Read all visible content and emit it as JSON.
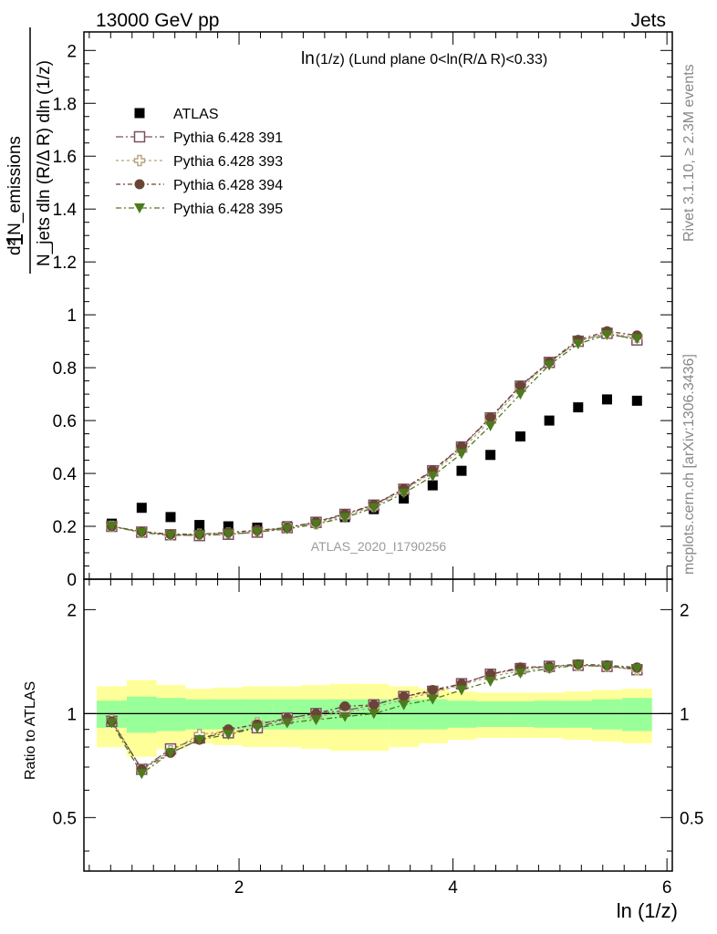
{
  "header": {
    "left": "13000 GeV pp",
    "right": "Jets",
    "side_rivet": "Rivet 3.1.10, ≥ 2.3M events",
    "side_mcplots": "mcplots.cern.ch [arXiv:1306.3436]",
    "analysis_id": "ATLAS_2020_I1790256"
  },
  "chart_data": [
    {
      "type": "scatter",
      "title": "ln(1/z) (Lund plane 0<ln(R/Δ R)<0.33)",
      "title_main": "ln",
      "title_sub": "(1/z) (Lund plane 0<ln(R/Δ R)<0.33)",
      "ylabel_top": "d² N_emissions",
      "ylabel_bottom": "N_jets dln (R/Δ R) dln (1/z)",
      "ylabel_one": "1",
      "ylim": [
        0,
        2.07
      ],
      "yticks": [
        "0",
        "0.2",
        "0.4",
        "0.6",
        "0.8",
        "1",
        "1.2",
        "1.4",
        "1.6",
        "1.8",
        "2"
      ],
      "x": [
        0.81,
        1.09,
        1.36,
        1.63,
        1.9,
        2.17,
        2.45,
        2.72,
        2.99,
        3.26,
        3.54,
        3.81,
        4.08,
        4.35,
        4.63,
        4.9,
        5.17,
        5.44,
        5.72
      ],
      "legend": [
        "ATLAS",
        "Pythia 6.428 391",
        "Pythia 6.428 393",
        "Pythia 6.428 394",
        "Pythia 6.428 395"
      ],
      "series": [
        {
          "name": "ATLAS",
          "color": "#000000",
          "marker": "square",
          "values": [
            0.21,
            0.27,
            0.235,
            0.205,
            0.2,
            0.195,
            0.2,
            0.215,
            0.235,
            0.265,
            0.305,
            0.355,
            0.41,
            0.47,
            0.54,
            0.6,
            0.65,
            0.68,
            0.675
          ]
        },
        {
          "name": "Pythia 6.428 391",
          "color": "#7b4f62",
          "marker": "open-square",
          "dash": "8 3 2 3",
          "values": [
            0.2,
            0.178,
            0.168,
            0.165,
            0.17,
            0.178,
            0.195,
            0.215,
            0.245,
            0.28,
            0.34,
            0.41,
            0.5,
            0.61,
            0.73,
            0.82,
            0.9,
            0.93,
            0.905
          ]
        },
        {
          "name": "Pythia 6.428 393",
          "color": "#b7a37c",
          "marker": "open-cross",
          "dash": "3 3",
          "values": [
            0.2,
            0.178,
            0.168,
            0.17,
            0.175,
            0.183,
            0.195,
            0.21,
            0.24,
            0.275,
            0.335,
            0.405,
            0.49,
            0.6,
            0.72,
            0.82,
            0.9,
            0.93,
            0.915
          ]
        },
        {
          "name": "Pythia 6.428 394",
          "color": "#6a4535",
          "marker": "circle",
          "dash": "5 3 2 3",
          "values": [
            0.2,
            0.18,
            0.17,
            0.17,
            0.177,
            0.185,
            0.195,
            0.217,
            0.247,
            0.282,
            0.342,
            0.412,
            0.502,
            0.612,
            0.732,
            0.822,
            0.905,
            0.938,
            0.922
          ]
        },
        {
          "name": "Pythia 6.428 395",
          "color": "#4e7a1e",
          "marker": "triangle-down",
          "dash": "6 3 2 3",
          "values": [
            0.2,
            0.176,
            0.166,
            0.166,
            0.17,
            0.178,
            0.19,
            0.208,
            0.233,
            0.27,
            0.325,
            0.39,
            0.475,
            0.58,
            0.7,
            0.81,
            0.89,
            0.925,
            0.91
          ]
        }
      ]
    },
    {
      "type": "scatter",
      "ylabel": "Ratio to ATLAS",
      "xlabel": "ln (1/z)",
      "xlim": [
        0.55,
        6.05
      ],
      "ylim": [
        0.35,
        2.45
      ],
      "xticks": [
        "2",
        "4",
        "6"
      ],
      "yticks": [
        "0.5",
        "1",
        "2"
      ],
      "band_inner": [
        0.09,
        0.12,
        0.11,
        0.1,
        0.1,
        0.1,
        0.1,
        0.1,
        0.1,
        0.1,
        0.1,
        0.1,
        0.09,
        0.085,
        0.085,
        0.09,
        0.09,
        0.1,
        0.11
      ],
      "band_outer": [
        0.2,
        0.25,
        0.21,
        0.18,
        0.19,
        0.2,
        0.2,
        0.21,
        0.22,
        0.22,
        0.2,
        0.18,
        0.16,
        0.15,
        0.15,
        0.15,
        0.16,
        0.17,
        0.18
      ],
      "series": [
        {
          "name": "Pythia 6.428 391",
          "values": [
            0.95,
            0.69,
            0.79,
            0.85,
            0.88,
            0.91,
            0.97,
            1.0,
            1.02,
            1.06,
            1.12,
            1.16,
            1.22,
            1.3,
            1.35,
            1.37,
            1.38,
            1.37,
            1.34
          ]
        },
        {
          "name": "Pythia 6.428 393",
          "values": [
            0.96,
            0.69,
            0.78,
            0.87,
            0.89,
            0.94,
            0.96,
            0.98,
            1.01,
            1.04,
            1.1,
            1.15,
            1.21,
            1.28,
            1.33,
            1.36,
            1.38,
            1.37,
            1.34
          ]
        },
        {
          "name": "Pythia 6.428 394",
          "values": [
            0.95,
            0.69,
            0.77,
            0.84,
            0.9,
            0.93,
            0.97,
            1.0,
            1.05,
            1.06,
            1.12,
            1.17,
            1.22,
            1.3,
            1.36,
            1.37,
            1.39,
            1.38,
            1.36
          ]
        },
        {
          "name": "Pythia 6.428 395",
          "values": [
            0.94,
            0.67,
            0.77,
            0.84,
            0.87,
            0.91,
            0.94,
            0.96,
            0.98,
            1.0,
            1.06,
            1.1,
            1.17,
            1.24,
            1.31,
            1.35,
            1.38,
            1.37,
            1.35
          ]
        }
      ]
    }
  ]
}
